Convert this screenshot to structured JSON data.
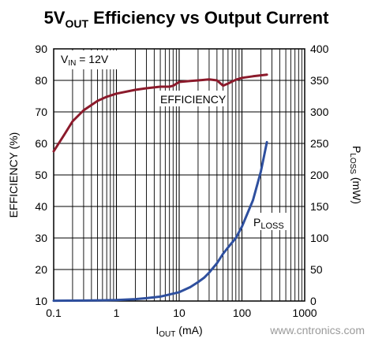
{
  "chart_data": {
    "type": "line",
    "title": {
      "main": "5V",
      "sub": "OUT",
      "rest": " Efficiency vs Output Current"
    },
    "x_axis": {
      "label": {
        "main": "I",
        "sub": "OUT",
        "rest": " (mA)"
      },
      "scale": "log",
      "range": [
        0.1,
        1000
      ],
      "ticks": [
        0.1,
        1,
        10,
        100,
        1000
      ],
      "tick_labels": [
        "0.1",
        "1",
        "10",
        "100",
        "1000"
      ]
    },
    "y_left": {
      "label": "EFFICIENCY (%)",
      "range": [
        10,
        90
      ],
      "ticks": [
        10,
        20,
        30,
        40,
        50,
        60,
        70,
        80,
        90
      ]
    },
    "y_right": {
      "label": {
        "main": "P",
        "sub": "LOSS",
        "rest": " (mW)"
      },
      "range": [
        0,
        400
      ],
      "ticks": [
        0,
        50,
        100,
        150,
        200,
        250,
        300,
        350,
        400
      ]
    },
    "grid": true,
    "annotations": {
      "condition": {
        "main": "V",
        "sub": "IN",
        "rest": " = 12V"
      },
      "efficiency_label": "EFFICIENCY",
      "ploss_label": {
        "main": "P",
        "sub": "LOSS"
      }
    },
    "series": [
      {
        "name": "EFFICIENCY",
        "axis": "left",
        "color": "#8b1a2b",
        "points": [
          [
            0.1,
            57.5
          ],
          [
            0.15,
            63
          ],
          [
            0.2,
            67
          ],
          [
            0.3,
            70.5
          ],
          [
            0.5,
            73.5
          ],
          [
            0.7,
            74.8
          ],
          [
            1,
            75.8
          ],
          [
            2,
            77
          ],
          [
            3,
            77.5
          ],
          [
            5,
            78
          ],
          [
            7,
            78
          ],
          [
            8,
            78.3
          ],
          [
            10,
            79.5
          ],
          [
            15,
            79.8
          ],
          [
            20,
            80
          ],
          [
            30,
            80.3
          ],
          [
            40,
            80
          ],
          [
            50,
            78.3
          ],
          [
            60,
            79
          ],
          [
            80,
            80.2
          ],
          [
            100,
            80.8
          ],
          [
            150,
            81.3
          ],
          [
            250,
            81.8
          ]
        ]
      },
      {
        "name": "P_LOSS",
        "axis": "right",
        "color": "#2e4f9e",
        "points": [
          [
            0.1,
            0.5
          ],
          [
            0.3,
            0.8
          ],
          [
            1,
            1.5
          ],
          [
            2,
            3
          ],
          [
            3,
            4.5
          ],
          [
            5,
            7
          ],
          [
            10,
            14
          ],
          [
            15,
            22
          ],
          [
            20,
            30
          ],
          [
            25,
            37
          ],
          [
            30,
            45
          ],
          [
            40,
            60
          ],
          [
            50,
            75
          ],
          [
            60,
            85
          ],
          [
            70,
            93
          ],
          [
            80,
            100
          ],
          [
            100,
            118
          ],
          [
            150,
            160
          ],
          [
            200,
            205
          ],
          [
            250,
            252
          ]
        ]
      }
    ]
  },
  "watermark": "www.cntronics.com"
}
